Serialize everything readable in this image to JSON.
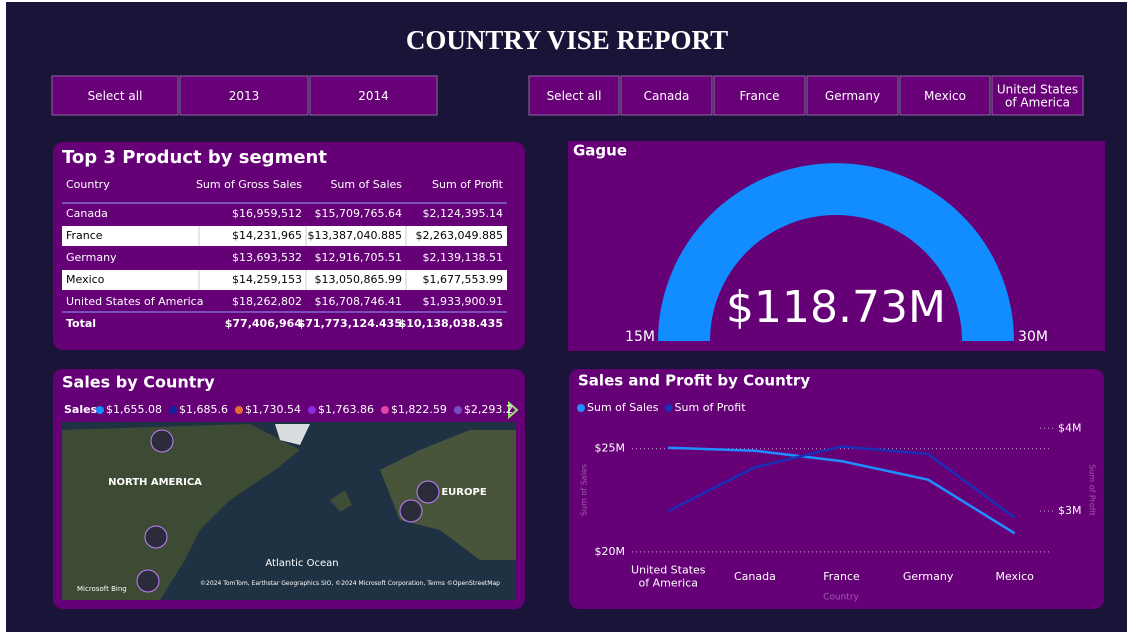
{
  "header": {
    "title": "COUNTRY VISE REPORT"
  },
  "year_slicer": [
    "Select all",
    "2013",
    "2014"
  ],
  "country_slicer": [
    "Select all",
    "Canada",
    "France",
    "Germany",
    "Mexico",
    "United States of America"
  ],
  "table": {
    "title": "Top 3 Product by segment",
    "columns": [
      "Country",
      "Sum of Gross Sales",
      "Sum of Sales",
      "Sum of Profit"
    ],
    "rows": [
      [
        "Canada",
        "$16,959,512",
        "$15,709,765.64",
        "$2,124,395.14"
      ],
      [
        "France",
        "$14,231,965",
        "$13,387,040.885",
        "$2,263,049.885"
      ],
      [
        "Germany",
        "$13,693,532",
        "$12,916,705.51",
        "$2,139,138.51"
      ],
      [
        "Mexico",
        "$14,259,153",
        "$13,050,865.99",
        "$1,677,553.99"
      ],
      [
        "United States of America",
        "$18,262,802",
        "$16,708,746.41",
        "$1,933,900.91"
      ]
    ],
    "total": [
      "Total",
      "$77,406,964",
      "$71,773,124.435",
      "$10,138,038.435"
    ]
  },
  "gauge": {
    "title": "Gague",
    "value_label": "$118.73M",
    "min_label": "15M",
    "max_label": "30M"
  },
  "map": {
    "title": "Sales by Country",
    "legend_title": "Sales",
    "legend": [
      {
        "label": "$1,655.08",
        "color": "#118dff"
      },
      {
        "label": "$1,685.6",
        "color": "#12239e"
      },
      {
        "label": "$1,730.54",
        "color": "#e66c37"
      },
      {
        "label": "$1,763.86",
        "color": "#8a2be2"
      },
      {
        "label": "$1,822.59",
        "color": "#e044a7"
      },
      {
        "label": "$2,293.2",
        "color": "#744ec2"
      }
    ],
    "places": [
      "NORTH AMERICA",
      "EUROPE",
      "Atlantic Ocean"
    ],
    "brand": "Microsoft Bing",
    "attribution": "©2024 TomTom, Earthstar Geographics SIO, ©2024 Microsoft Corporation, Terms ©OpenStreetMap"
  },
  "chart_data": {
    "type": "line",
    "title": "Sales and Profit by Country",
    "categories": [
      "United States of America",
      "Canada",
      "France",
      "Germany",
      "Mexico"
    ],
    "x_label": "Country",
    "y_label": "Sum of Sales",
    "y2_label": "Sum of Profit",
    "series": [
      {
        "name": "Sum of Sales",
        "color": "#1e8fff",
        "values": [
          25.05,
          24.9,
          24.4,
          23.5,
          20.9
        ]
      },
      {
        "name": "Sum of Profit",
        "color": "#1a2fb5",
        "axis": "y2",
        "values": [
          3.0,
          3.53,
          3.78,
          3.69,
          2.92
        ]
      }
    ],
    "ylim": [
      19.85,
      26.15
    ],
    "yticks": [
      {
        "value": 20,
        "label": "$20M"
      },
      {
        "value": 25,
        "label": "$25M"
      }
    ],
    "y2lim": [
      2.47,
      4.04
    ],
    "y2ticks": [
      {
        "value": 3,
        "label": "$3M"
      },
      {
        "value": 4,
        "label": "$4M"
      }
    ],
    "grid": true
  }
}
